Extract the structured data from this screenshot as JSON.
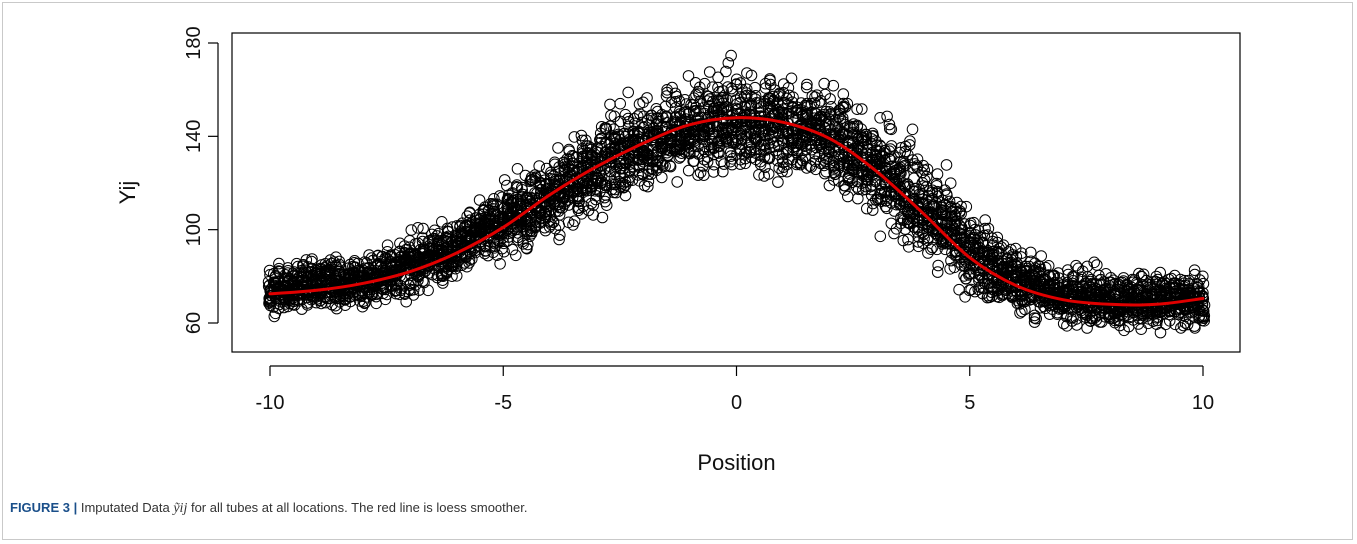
{
  "chart_data": {
    "type": "scatter",
    "title": "",
    "xlabel": "Position",
    "ylabel": "Yij",
    "xlim": [
      -10,
      10
    ],
    "ylim": [
      52,
      180
    ],
    "xticks": [
      "-10",
      "-5",
      "0",
      "5",
      "10"
    ],
    "yticks": [
      "60",
      "100",
      "140",
      "180"
    ],
    "grid": false,
    "legend": "none",
    "marker": "open-circle",
    "point_color": "#000000",
    "smoother_color": "#e00000",
    "points_per_position": 21,
    "scatter_profile": {
      "x": [
        -10,
        -9,
        -8,
        -7,
        -6,
        -5,
        -4,
        -3,
        -2,
        -1,
        0,
        1,
        2,
        3,
        4,
        5,
        6,
        7,
        8,
        9,
        10
      ],
      "center": [
        74,
        77,
        78,
        84,
        93,
        103,
        114,
        127,
        137,
        143,
        146,
        145,
        140,
        127,
        111,
        90,
        78,
        72,
        70,
        70,
        69
      ],
      "spread": [
        8,
        8,
        10,
        10,
        10,
        12,
        15,
        16,
        16,
        17,
        18,
        17,
        17,
        19,
        18,
        15,
        12,
        10,
        10,
        10,
        9
      ]
    },
    "series": [
      {
        "name": "",
        "type": "line",
        "x": [
          -10,
          -9,
          -8,
          -7,
          -6,
          -5,
          -4,
          -3,
          -2,
          -1,
          0,
          1,
          2,
          3,
          4,
          5,
          6,
          7,
          8,
          9,
          10
        ],
        "y": [
          72.5,
          74,
          77,
          82,
          90,
          101,
          115,
          127,
          137,
          145,
          148,
          146,
          139,
          125,
          107,
          88,
          76,
          70,
          68,
          68,
          70.5
        ]
      }
    ]
  },
  "caption": {
    "label": "FIGURE 3 |",
    "text_before": "Imputated Data",
    "math": "ỹij",
    "text_after": "for all tubes at all locations. The red line is loess smoother."
  }
}
